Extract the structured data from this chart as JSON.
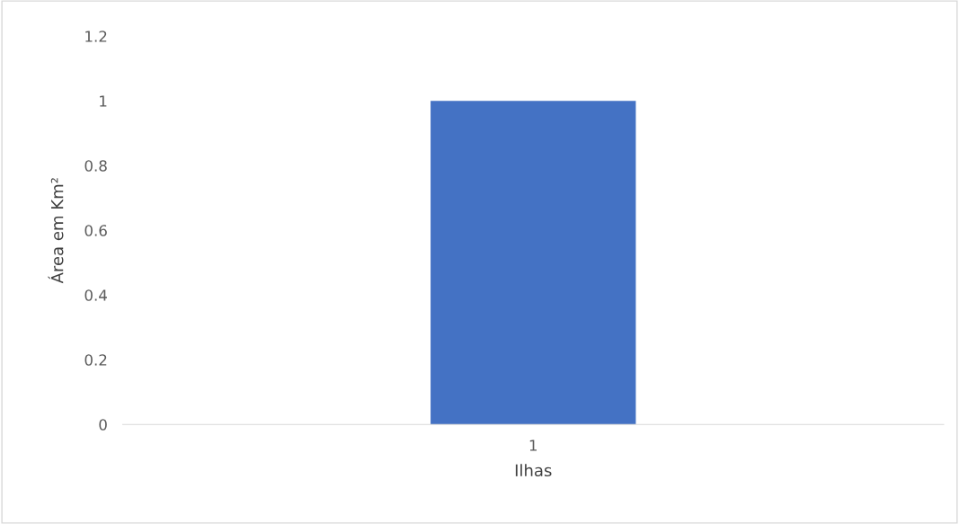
{
  "chart_data": {
    "type": "bar",
    "xlabel": "Ilhas",
    "ylabel": "Área em Km²",
    "categories": [
      "1"
    ],
    "values": [
      1
    ],
    "color": "#4472c4",
    "ylim": [
      0,
      1.2
    ],
    "yticks": [
      0,
      0.2,
      0.4,
      0.6,
      0.8,
      1,
      1.2
    ],
    "grid": false
  }
}
